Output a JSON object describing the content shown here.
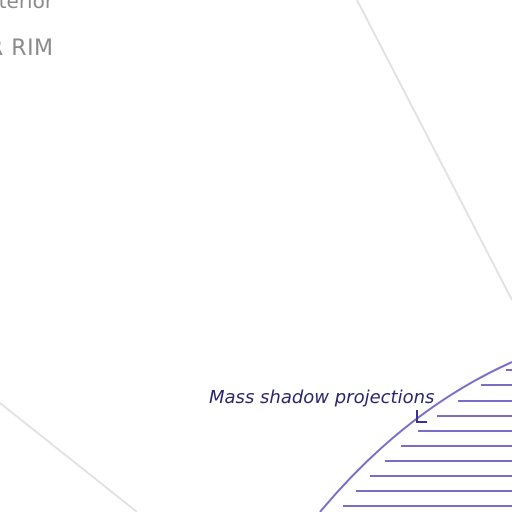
{
  "labels": {
    "top_cut": "nterior",
    "rim": "R RIM",
    "mass_shadow": "Mass shadow projections"
  },
  "colors": {
    "background": "#ffffff",
    "guide_line": "#e2e2e2",
    "hatch_stroke": "#7a6cc8",
    "label_gray": "#8a8a8a",
    "annotation_text": "#2b2470",
    "leader": "#3a3390"
  }
}
